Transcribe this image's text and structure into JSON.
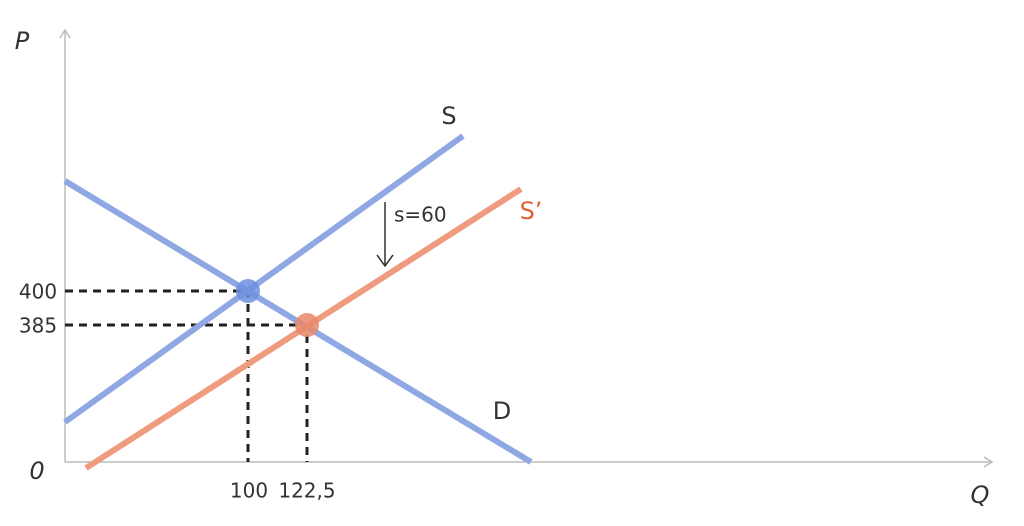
{
  "axes": {
    "y_label": "P",
    "x_label": "Q",
    "origin": "0"
  },
  "curves": {
    "supply": "S",
    "shifted_supply": "S’",
    "demand": "D"
  },
  "shift": {
    "label": "s=60"
  },
  "y_ticks": [
    "400",
    "385"
  ],
  "x_ticks": [
    "100",
    "122,5"
  ]
}
